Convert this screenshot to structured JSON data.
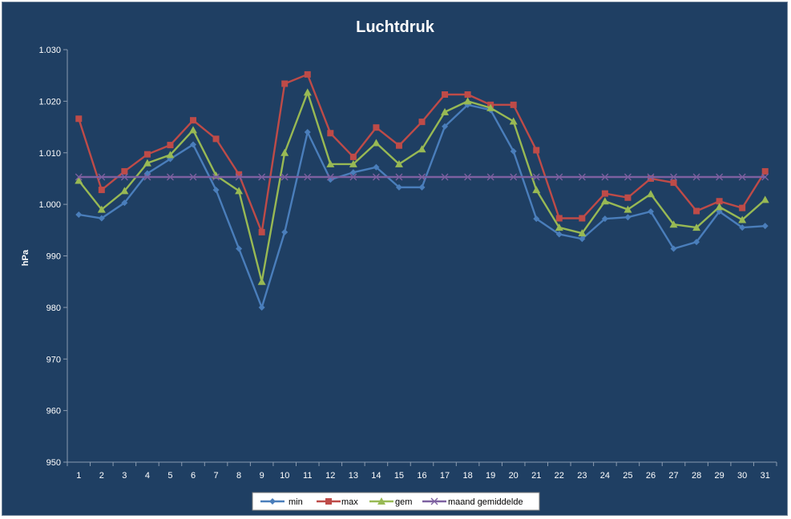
{
  "chart_data": {
    "type": "line",
    "title": "Luchtdruk",
    "xlabel": "",
    "ylabel": "hPa",
    "ylim": [
      950,
      1030
    ],
    "yticks": [
      950,
      960,
      970,
      980,
      990,
      1000,
      1010,
      1020,
      1030
    ],
    "ytick_labels": [
      "950",
      "960",
      "970",
      "980",
      "990",
      "1.000",
      "1.010",
      "1.020",
      "1.030"
    ],
    "categories": [
      "1",
      "2",
      "3",
      "4",
      "5",
      "6",
      "7",
      "8",
      "9",
      "10",
      "11",
      "12",
      "13",
      "14",
      "15",
      "16",
      "17",
      "18",
      "19",
      "20",
      "21",
      "22",
      "23",
      "24",
      "25",
      "26",
      "27",
      "28",
      "29",
      "30",
      "31"
    ],
    "grid": false,
    "legend_position": "bottom",
    "series": [
      {
        "name": "min",
        "color": "#4a7ebb",
        "marker": "diamond",
        "values": [
          998.0,
          997.3,
          1000.3,
          1006.0,
          1008.8,
          1011.6,
          1002.8,
          991.4,
          980.0,
          994.6,
          1014.0,
          1004.8,
          1006.2,
          1007.2,
          1003.3,
          1003.3,
          1015.1,
          1019.3,
          1018.3,
          1010.3,
          997.2,
          994.2,
          993.3,
          997.2,
          997.5,
          998.6,
          991.4,
          992.7,
          998.6,
          995.5,
          995.8
        ]
      },
      {
        "name": "max",
        "color": "#be4b48",
        "marker": "square",
        "values": [
          1016.6,
          1002.8,
          1006.4,
          1009.7,
          1011.5,
          1016.3,
          1012.7,
          1005.8,
          994.6,
          1023.4,
          1025.2,
          1013.8,
          1009.2,
          1014.9,
          1011.4,
          1016.0,
          1021.3,
          1021.3,
          1019.3,
          1019.3,
          1010.5,
          997.3,
          997.3,
          1002.1,
          1001.3,
          1005.0,
          1004.2,
          998.7,
          1000.6,
          999.3,
          1006.4
        ]
      },
      {
        "name": "gem",
        "color": "#98b954",
        "marker": "triangle",
        "values": [
          1004.6,
          999.0,
          1002.6,
          1008.0,
          1009.6,
          1014.4,
          1005.6,
          1002.6,
          985.0,
          1010.0,
          1021.7,
          1007.8,
          1007.8,
          1011.9,
          1007.8,
          1010.7,
          1017.9,
          1020.0,
          1018.7,
          1016.1,
          1002.8,
          995.5,
          994.4,
          1000.6,
          999.0,
          1002.0,
          996.1,
          995.5,
          999.5,
          997.0,
          1000.9
        ]
      },
      {
        "name": "maand gemiddelde",
        "color": "#7d60a0",
        "marker": "x",
        "values": [
          1005.3,
          1005.3,
          1005.3,
          1005.3,
          1005.3,
          1005.3,
          1005.3,
          1005.3,
          1005.3,
          1005.3,
          1005.3,
          1005.3,
          1005.3,
          1005.3,
          1005.3,
          1005.3,
          1005.3,
          1005.3,
          1005.3,
          1005.3,
          1005.3,
          1005.3,
          1005.3,
          1005.3,
          1005.3,
          1005.3,
          1005.3,
          1005.3,
          1005.3,
          1005.3,
          1005.3
        ]
      }
    ]
  }
}
